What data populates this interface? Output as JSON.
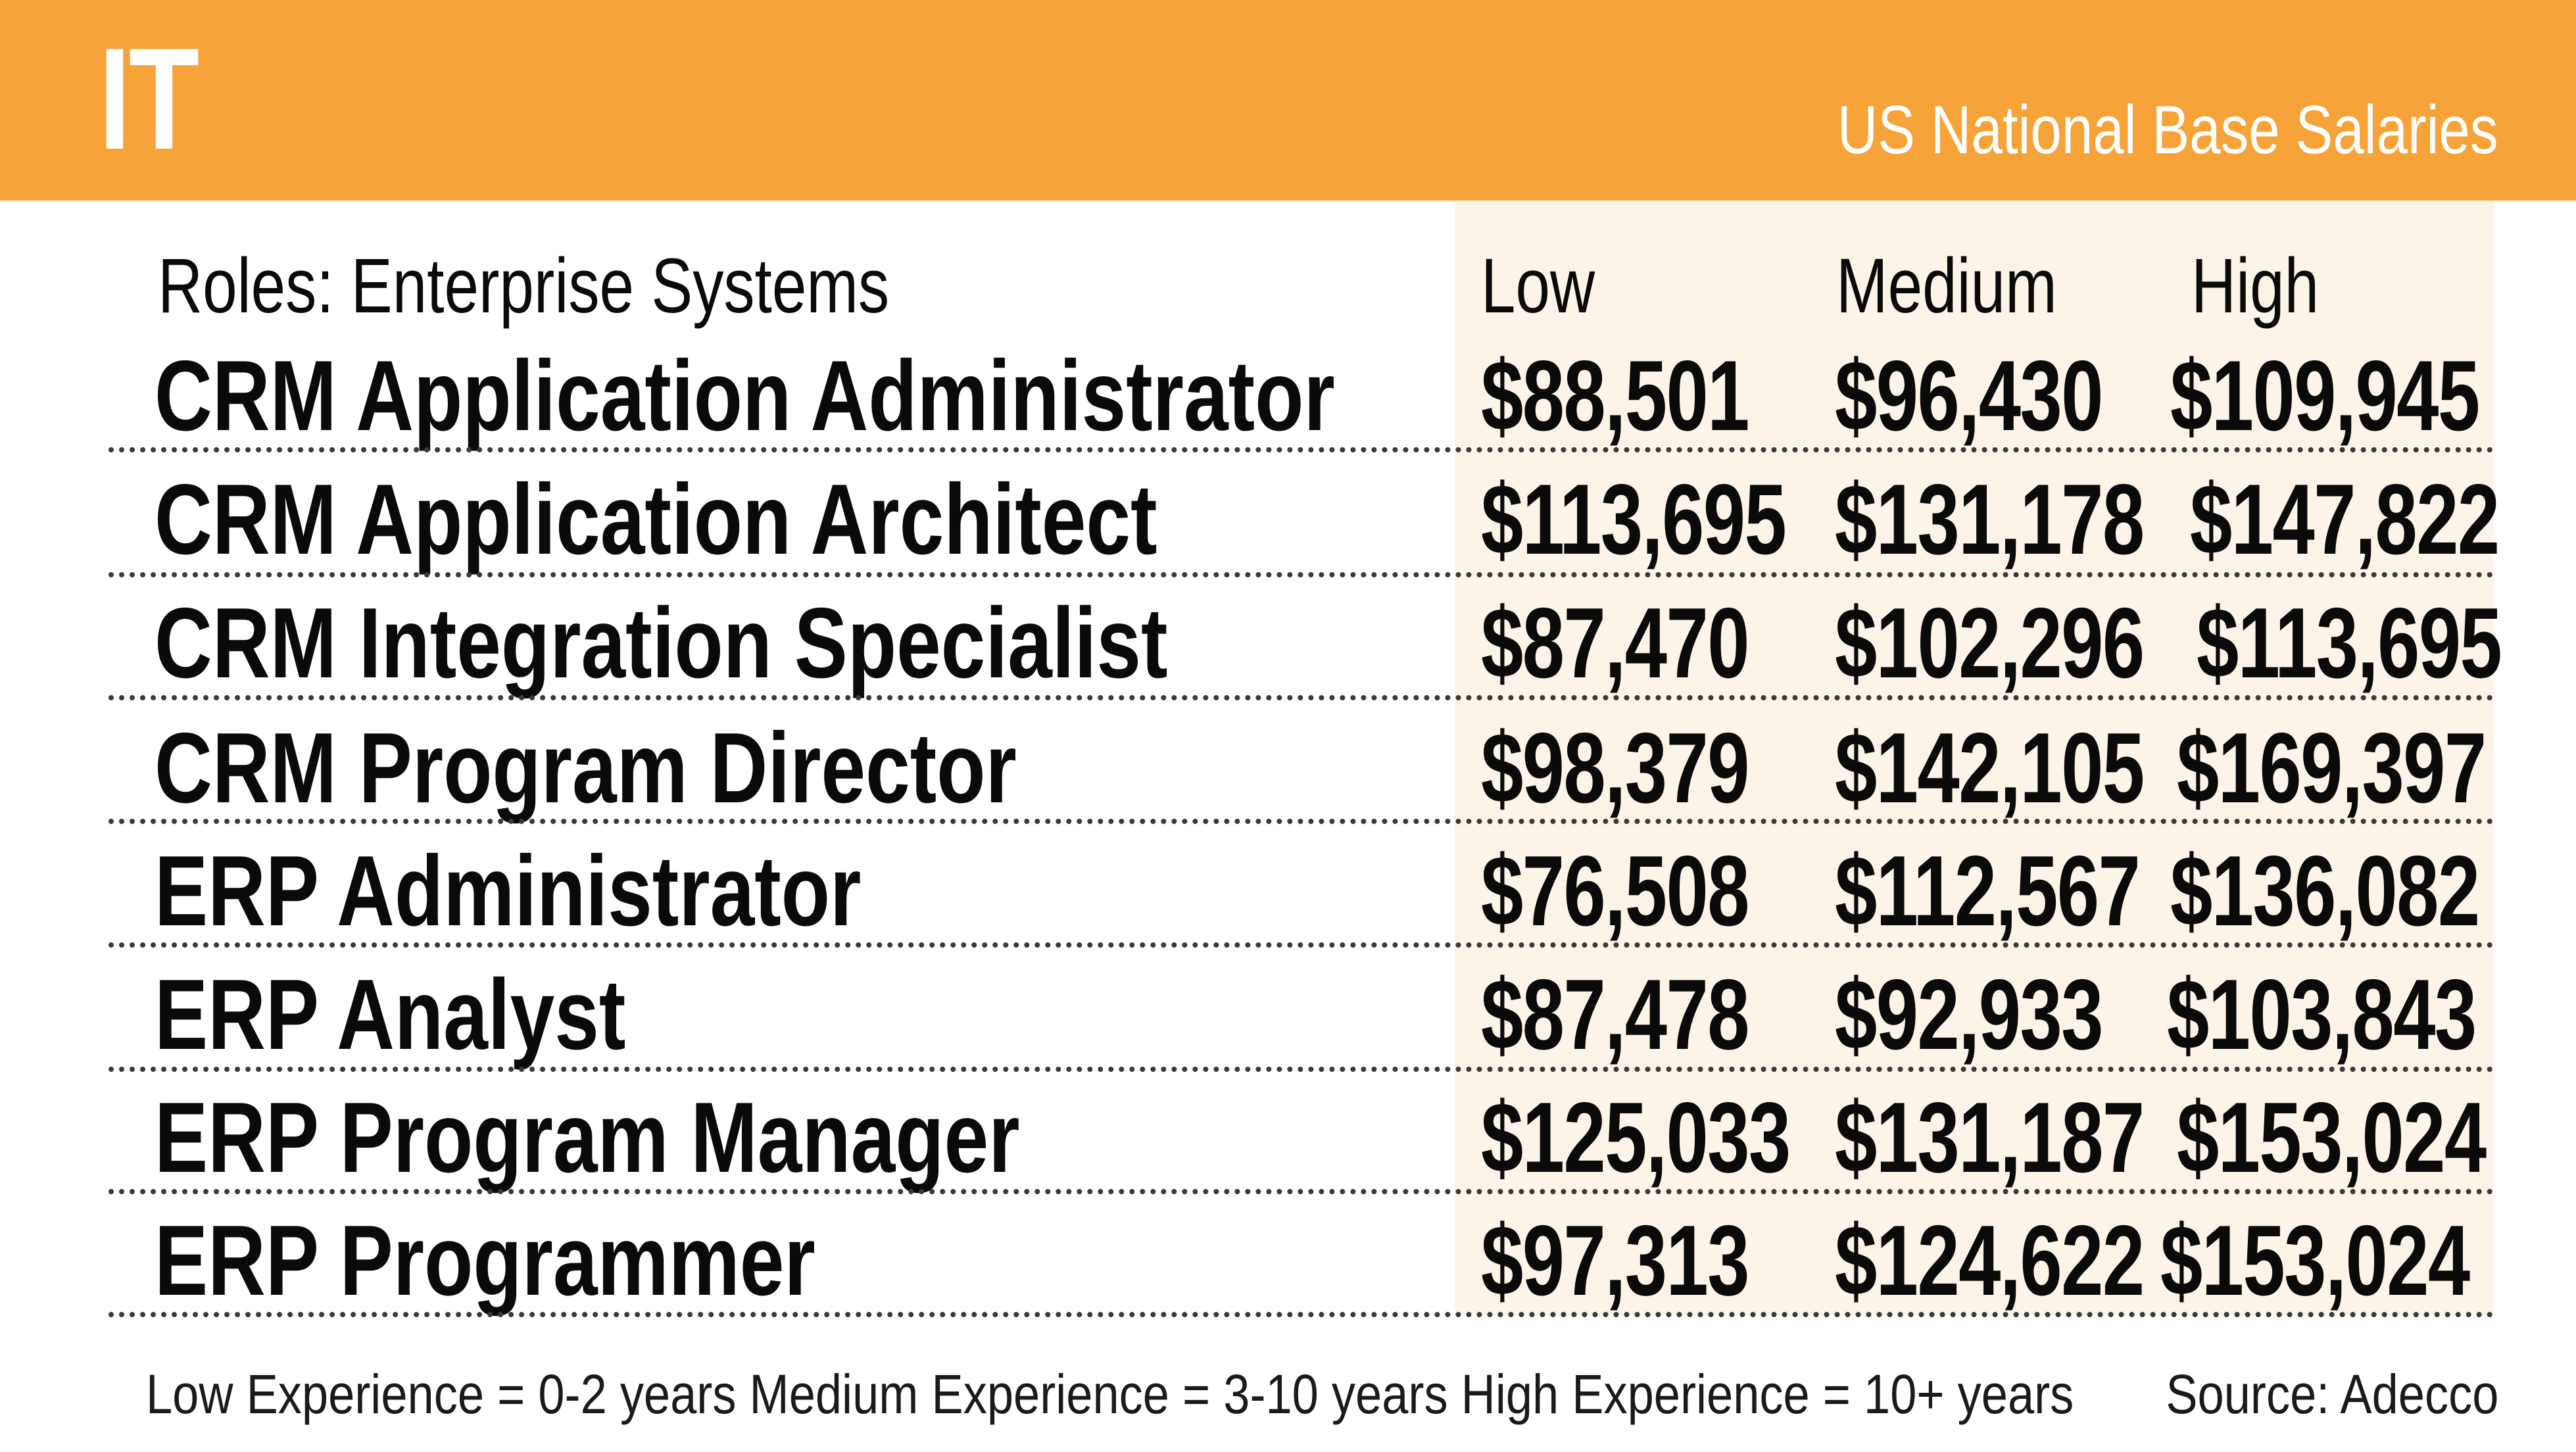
{
  "header": {
    "title": "IT",
    "subtitle": "US National Base Salaries"
  },
  "table": {
    "columns": [
      "Roles: Enterprise Systems",
      "Low",
      "Medium",
      "High"
    ],
    "rows": [
      {
        "role": "CRM Application Administrator",
        "low": "$88,501",
        "medium": "$96,430",
        "high": "$109,945"
      },
      {
        "role": "CRM Application Architect",
        "low": "$113,695",
        "medium": "$131,178",
        "high": "$147,822"
      },
      {
        "role": "CRM Integration Specialist",
        "low": "$87,470",
        "medium": "$102,296",
        "high": "$113,695"
      },
      {
        "role": "CRM Program Director",
        "low": "$98,379",
        "medium": "$142,105",
        "high": "$169,397"
      },
      {
        "role": "ERP Administrator",
        "low": "$76,508",
        "medium": "$112,567",
        "high": "$136,082"
      },
      {
        "role": "ERP Analyst",
        "low": "$87,478",
        "medium": "$92,933",
        "high": "$103,843"
      },
      {
        "role": "ERP Program Manager",
        "low": "$125,033",
        "medium": "$131,187",
        "high": "$153,024"
      },
      {
        "role": "ERP Programmer",
        "low": "$97,313",
        "medium": "$124,622",
        "high": "$153,024"
      }
    ]
  },
  "footer": {
    "note": "Low Experience = 0-2 years Medium Experience = 3-10 years High Experience = 10+ years",
    "source": "Source: Adecco"
  },
  "colors": {
    "header_bg": "#f6a33a",
    "column_shade": "#fdf4e9",
    "text": "#0a0a0a"
  }
}
